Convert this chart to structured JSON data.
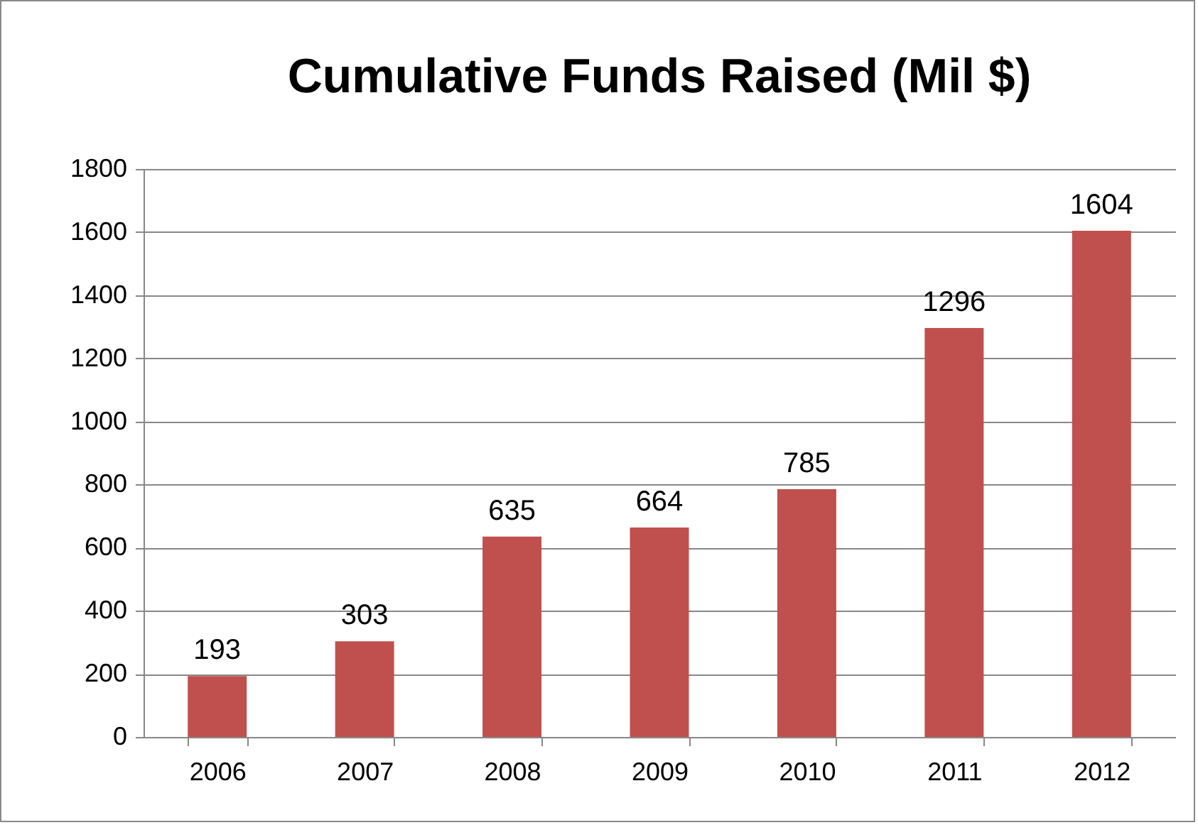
{
  "chart_data": {
    "type": "bar",
    "title": "Cumulative Funds Raised (Mil $)",
    "categories": [
      "2006",
      "2007",
      "2008",
      "2009",
      "2010",
      "2011",
      "2012"
    ],
    "values": [
      193,
      303,
      635,
      664,
      785,
      1296,
      1604
    ],
    "color": "#c0504d",
    "ylim": [
      0,
      1800
    ],
    "yticks": [
      0,
      200,
      400,
      600,
      800,
      1000,
      1200,
      1400,
      1600,
      1800
    ],
    "grid": "y",
    "data_labels": true
  }
}
